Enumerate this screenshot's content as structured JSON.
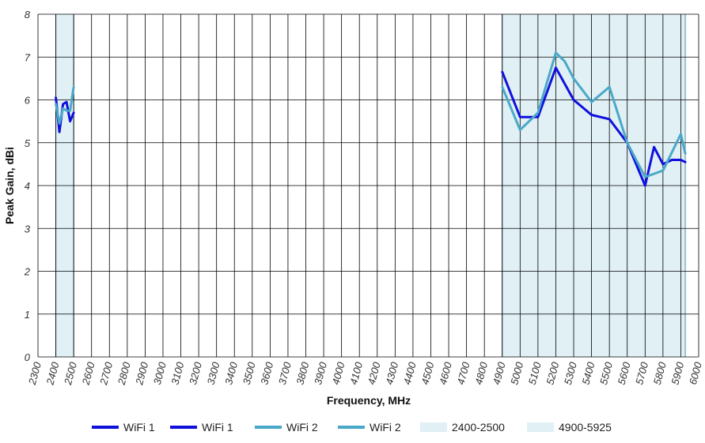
{
  "chart_data": {
    "type": "line",
    "xlabel": "Frequency, MHz",
    "ylabel": "Peak Gain, dBi",
    "xlim": [
      2300,
      6000
    ],
    "ylim": [
      0,
      8
    ],
    "x_ticks": [
      "2300",
      "2400",
      "2500",
      "2600",
      "2700",
      "2800",
      "2900",
      "3000",
      "3100",
      "3200",
      "3300",
      "3400",
      "3500",
      "3600",
      "3700",
      "3800",
      "3900",
      "4000",
      "4100",
      "4200",
      "4300",
      "4400",
      "4500",
      "4600",
      "4700",
      "4800",
      "4900",
      "5000",
      "5100",
      "5200",
      "5300",
      "5400",
      "5500",
      "5600",
      "5700",
      "5800",
      "5900",
      "6000"
    ],
    "y_ticks": [
      "0",
      "1",
      "2",
      "3",
      "4",
      "5",
      "6",
      "7",
      "8"
    ],
    "grid": true,
    "legend_position": "bottom",
    "bands": [
      {
        "name": "2400-2500",
        "from": 2400,
        "to": 2500,
        "color": "#e0f0f5"
      },
      {
        "name": "4900-5925",
        "from": 4900,
        "to": 5925,
        "color": "#e0f0f5"
      }
    ],
    "series": [
      {
        "name": "WiFi 1",
        "color": "#1010dd",
        "x": [
          2400,
          2420,
          2440,
          2460,
          2480,
          2500
        ],
        "y": [
          6.05,
          5.25,
          5.9,
          5.95,
          5.5,
          5.7
        ]
      },
      {
        "name": "WiFi 1",
        "color": "#1010dd",
        "x": [
          4900,
          5000,
          5100,
          5200,
          5300,
          5400,
          5500,
          5600,
          5700,
          5750,
          5800,
          5850,
          5900,
          5925
        ],
        "y": [
          6.65,
          5.6,
          5.6,
          6.75,
          6.0,
          5.65,
          5.55,
          5.0,
          4.0,
          4.9,
          4.5,
          4.6,
          4.6,
          4.55
        ]
      },
      {
        "name": "WiFi 2",
        "color": "#4aa8c8",
        "x": [
          2400,
          2420,
          2440,
          2460,
          2480,
          2500
        ],
        "y": [
          5.9,
          5.45,
          5.8,
          5.75,
          5.75,
          6.3
        ]
      },
      {
        "name": "WiFi 2",
        "color": "#4aa8c8",
        "x": [
          4900,
          5000,
          5100,
          5200,
          5250,
          5300,
          5400,
          5500,
          5600,
          5700,
          5800,
          5900,
          5925
        ],
        "y": [
          6.3,
          5.3,
          5.7,
          7.1,
          6.9,
          6.5,
          5.95,
          6.3,
          5.0,
          4.2,
          4.35,
          5.2,
          4.75
        ]
      }
    ]
  },
  "legend": {
    "items": [
      {
        "label": "WiFi 1",
        "color": "#1010dd",
        "kind": "line"
      },
      {
        "label": "WiFi 1",
        "color": "#1010dd",
        "kind": "line"
      },
      {
        "label": "WiFi 2",
        "color": "#4aa8c8",
        "kind": "line"
      },
      {
        "label": "WiFi 2",
        "color": "#4aa8c8",
        "kind": "line"
      },
      {
        "label": "2400-2500",
        "color": "#e0f0f5",
        "kind": "band"
      },
      {
        "label": "4900-5925",
        "color": "#e0f0f5",
        "kind": "band"
      }
    ]
  }
}
